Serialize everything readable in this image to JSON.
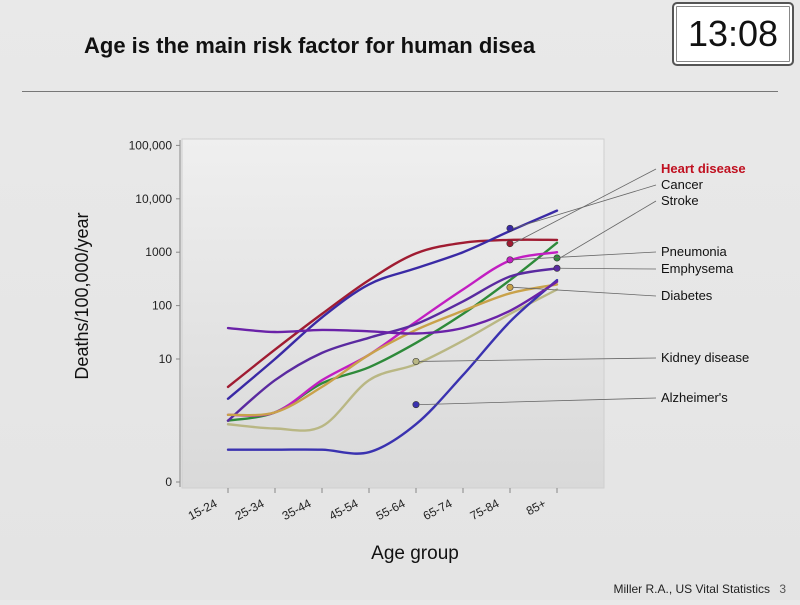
{
  "slide": {
    "title": "Age is the main risk factor for human disea",
    "clock": "13:08",
    "source": "Miller R.A., US Vital Statistics",
    "page_number": "3"
  },
  "chart_data": {
    "type": "line",
    "title": "",
    "xlabel": "Age group",
    "ylabel": "Deaths/100,000/year",
    "y_scale": "log",
    "categories": [
      "15-24",
      "25-34",
      "35-44",
      "45-54",
      "55-64",
      "65-74",
      "75-84",
      "85+"
    ],
    "y_ticks": [
      {
        "value": 0,
        "label": "0"
      },
      {
        "value": 10,
        "label": "10"
      },
      {
        "value": 100,
        "label": "100"
      },
      {
        "value": 1000,
        "label": "1000"
      },
      {
        "value": 10000,
        "label": "10,000"
      },
      {
        "value": 100000,
        "label": "100,000"
      }
    ],
    "grid": false,
    "legend": "right, labels with leader lines",
    "series": [
      {
        "name": "Heart disease",
        "color": "#a01c32",
        "emphasis": true,
        "values": [
          3,
          15,
          70,
          300,
          950,
          1500,
          1700,
          1700
        ],
        "marker": {
          "category": "75-84",
          "value": 1450
        }
      },
      {
        "name": "Cancer",
        "color": "#3a2aa5",
        "values": [
          1.8,
          10,
          60,
          250,
          500,
          1000,
          2500,
          6000
        ],
        "marker": {
          "category": "75-84",
          "value": 2800
        }
      },
      {
        "name": "Stroke",
        "color": "#2e8a3a",
        "values": [
          0.7,
          1,
          3.5,
          7,
          20,
          70,
          300,
          1500
        ],
        "marker": {
          "category": "85+",
          "value": 780
        }
      },
      {
        "name": "Pneumonia",
        "color": "#c21ec2",
        "values": [
          0.9,
          1,
          4,
          12,
          50,
          200,
          700,
          1000
        ],
        "marker": {
          "category": "75-84",
          "value": 720
        }
      },
      {
        "name": "Emphysema",
        "color": "#5a2aa0",
        "values": [
          0.7,
          4,
          13,
          25,
          45,
          120,
          350,
          500
        ],
        "marker": {
          "category": "85+",
          "value": 500
        }
      },
      {
        "name": "Diabetes",
        "color": "#c9a24a",
        "values": [
          0.9,
          1,
          3,
          12,
          35,
          80,
          170,
          250
        ],
        "marker": {
          "category": "75-84",
          "value": 220
        }
      },
      {
        "name": "Kidney disease",
        "color": "#b9b784",
        "values": [
          0.6,
          0.5,
          0.55,
          4,
          8,
          22,
          70,
          200
        ],
        "marker": {
          "category": "55-64",
          "value": 9
        }
      },
      {
        "name": "Alzheimer's",
        "color": "#3a32b0",
        "values": [
          0.2,
          0.2,
          0.2,
          0.18,
          0.6,
          5,
          50,
          300
        ],
        "marker": {
          "category": "55-64",
          "value": 1.4
        }
      },
      {
        "name": "",
        "color": "#6a22a8",
        "values": [
          38,
          32,
          35,
          33,
          30,
          38,
          80,
          280
        ]
      }
    ]
  }
}
